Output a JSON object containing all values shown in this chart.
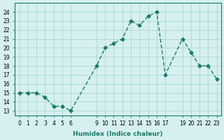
{
  "x": [
    0,
    1,
    2,
    3,
    4,
    5,
    6,
    9,
    10,
    11,
    12,
    13,
    14,
    15,
    16,
    17,
    19,
    20,
    21,
    22,
    23
  ],
  "y": [
    15,
    15,
    15,
    14.5,
    13.5,
    13.5,
    13,
    18,
    20,
    20.5,
    21,
    23,
    22.5,
    23.5,
    24,
    17,
    21,
    19.5,
    18,
    18,
    16.5
  ],
  "line_color": "#1a7a6a",
  "marker_color": "#1a7a6a",
  "bg_color": "#d6f0f0",
  "grid_color": "#b0d8d8",
  "xlabel": "Humidex (Indice chaleur)",
  "xticks": [
    0,
    1,
    2,
    3,
    4,
    5,
    6,
    9,
    10,
    11,
    12,
    13,
    14,
    15,
    16,
    17,
    19,
    20,
    21,
    22,
    23
  ],
  "yticks": [
    13,
    14,
    15,
    16,
    17,
    18,
    19,
    20,
    21,
    22,
    23,
    24
  ],
  "ylim": [
    12.5,
    25
  ],
  "xlim": [
    -0.5,
    23.5
  ]
}
